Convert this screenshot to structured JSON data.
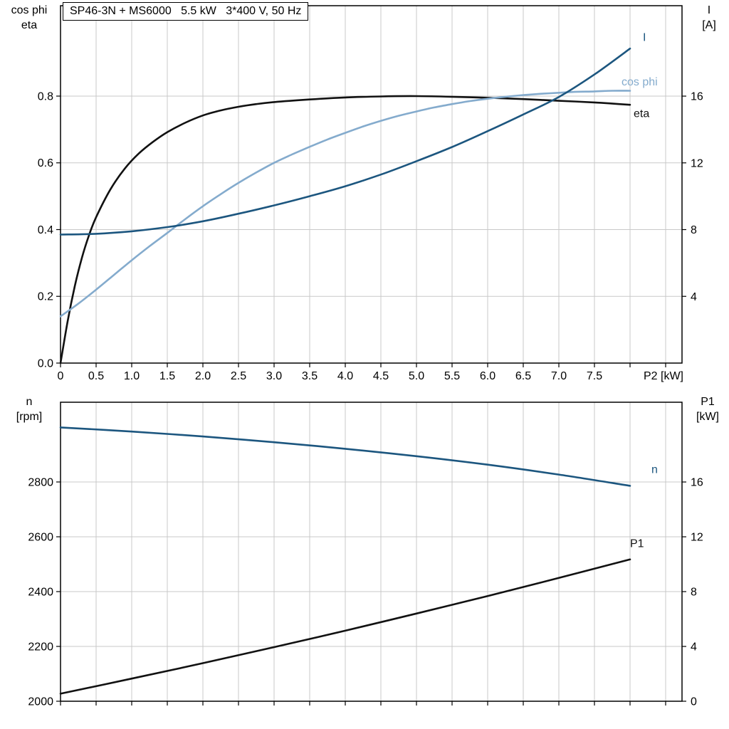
{
  "title": "SP46-3N + MS6000   5.5 kW   3*400 V, 50 Hz",
  "colors": {
    "curve_black": "#111111",
    "curve_dark_blue": "#1c567f",
    "curve_light_blue": "#84abcd",
    "grid": "#c9c9c9",
    "frame": "#000000",
    "text": "#000000"
  },
  "chart_data": [
    {
      "type": "line",
      "name": "motor-electrical-curves",
      "x_axis": {
        "min": 0,
        "max": 8.73,
        "grid_step": 0.5,
        "tick_labels": [
          "0",
          "0.5",
          "1.0",
          "1.5",
          "2.0",
          "2.5",
          "3.0",
          "3.5",
          "4.0",
          "4.5",
          "5.0",
          "5.5",
          "6.0",
          "6.5",
          "7.0",
          "7.5"
        ],
        "end_label": "P2 [kW]"
      },
      "left_axis": {
        "title": "cos phi\neta",
        "min": 0,
        "max": 1.0709,
        "ticks": [
          0,
          0.2,
          0.4,
          0.6,
          0.8
        ],
        "tick_labels": [
          "0.0",
          "0.2",
          "0.4",
          "0.6",
          "0.8"
        ]
      },
      "right_axis": {
        "title": "I\n[A]",
        "min": 0,
        "max": 21.42,
        "ticks": [
          4,
          8,
          12,
          16
        ],
        "tick_labels": [
          "4",
          "8",
          "12",
          "16"
        ]
      },
      "series": [
        {
          "name": "eta",
          "axis": "left",
          "color": "curve_black",
          "label": "eta",
          "label_at": [
            8.05,
            0.737
          ],
          "points": [
            [
              0,
              0
            ],
            [
              0.1,
              0.125
            ],
            [
              0.2,
              0.23
            ],
            [
              0.3,
              0.315
            ],
            [
              0.4,
              0.383
            ],
            [
              0.5,
              0.437
            ],
            [
              0.7,
              0.52
            ],
            [
              0.9,
              0.582
            ],
            [
              1.1,
              0.628
            ],
            [
              1.3,
              0.663
            ],
            [
              1.5,
              0.692
            ],
            [
              1.75,
              0.72
            ],
            [
              2,
              0.742
            ],
            [
              2.25,
              0.757
            ],
            [
              2.5,
              0.768
            ],
            [
              2.75,
              0.776
            ],
            [
              3,
              0.782
            ],
            [
              3.5,
              0.79
            ],
            [
              4,
              0.796
            ],
            [
              4.5,
              0.799
            ],
            [
              5,
              0.8
            ],
            [
              5.5,
              0.798
            ],
            [
              6,
              0.795
            ],
            [
              6.5,
              0.791
            ],
            [
              7,
              0.786
            ],
            [
              7.5,
              0.781
            ],
            [
              8,
              0.774
            ]
          ]
        },
        {
          "name": "cos phi",
          "axis": "left",
          "color": "curve_light_blue",
          "label": "cos phi",
          "label_at": [
            7.88,
            0.832
          ],
          "points": [
            [
              0,
              0.14
            ],
            [
              0.25,
              0.178
            ],
            [
              0.5,
              0.22
            ],
            [
              0.75,
              0.264
            ],
            [
              1,
              0.308
            ],
            [
              1.25,
              0.35
            ],
            [
              1.5,
              0.39
            ],
            [
              1.75,
              0.431
            ],
            [
              2,
              0.47
            ],
            [
              2.25,
              0.506
            ],
            [
              2.5,
              0.54
            ],
            [
              2.75,
              0.571
            ],
            [
              3,
              0.6
            ],
            [
              3.25,
              0.625
            ],
            [
              3.5,
              0.648
            ],
            [
              3.75,
              0.67
            ],
            [
              4,
              0.69
            ],
            [
              4.25,
              0.709
            ],
            [
              4.5,
              0.726
            ],
            [
              4.75,
              0.741
            ],
            [
              5,
              0.754
            ],
            [
              5.25,
              0.766
            ],
            [
              5.5,
              0.776
            ],
            [
              5.75,
              0.785
            ],
            [
              6,
              0.792
            ],
            [
              6.25,
              0.798
            ],
            [
              6.5,
              0.803
            ],
            [
              6.75,
              0.807
            ],
            [
              7,
              0.81
            ],
            [
              7.25,
              0.813
            ],
            [
              7.5,
              0.814
            ],
            [
              7.75,
              0.816
            ],
            [
              8,
              0.816
            ]
          ]
        },
        {
          "name": "I",
          "axis": "right",
          "color": "curve_dark_blue",
          "label": "I",
          "label_at": [
            8.18,
            19.3
          ],
          "points": [
            [
              0,
              7.7
            ],
            [
              0.5,
              7.75
            ],
            [
              1,
              7.9
            ],
            [
              1.5,
              8.15
            ],
            [
              2,
              8.5
            ],
            [
              2.5,
              8.95
            ],
            [
              3,
              9.45
            ],
            [
              3.5,
              10.0
            ],
            [
              4,
              10.6
            ],
            [
              4.5,
              11.3
            ],
            [
              5,
              12.1
            ],
            [
              5.5,
              12.95
            ],
            [
              6,
              13.9
            ],
            [
              6.5,
              14.9
            ],
            [
              7,
              15.95
            ],
            [
              7.5,
              17.3
            ],
            [
              8,
              18.85
            ]
          ]
        }
      ]
    },
    {
      "type": "line",
      "name": "speed-and-input-power-curves",
      "x_axis": {
        "min": 0,
        "max": 8.73,
        "grid_step": 0.5,
        "tick_labels": [],
        "end_label": ""
      },
      "left_axis": {
        "title": "n\n[rpm]",
        "min": 2000,
        "max": 3090.9,
        "ticks": [
          2000,
          2200,
          2400,
          2600,
          2800
        ],
        "tick_labels": [
          "2000",
          "2200",
          "2400",
          "2600",
          "2800"
        ]
      },
      "right_axis": {
        "title": "P1\n[kW]",
        "min": 0,
        "max": 21.82,
        "ticks": [
          0,
          4,
          8,
          12,
          16
        ],
        "tick_labels": [
          "0",
          "4",
          "8",
          "12",
          "16"
        ]
      },
      "series": [
        {
          "name": "n",
          "axis": "left",
          "color": "curve_dark_blue",
          "label": "n",
          "label_at": [
            8.3,
            2832
          ],
          "points": [
            [
              0,
              2999
            ],
            [
              1,
              2984
            ],
            [
              2,
              2966
            ],
            [
              3,
              2945
            ],
            [
              4,
              2921
            ],
            [
              5,
              2894
            ],
            [
              6,
              2863
            ],
            [
              7,
              2827
            ],
            [
              8,
              2786
            ]
          ]
        },
        {
          "name": "P1",
          "axis": "right",
          "color": "curve_black",
          "label": "P1",
          "label_at": [
            8.0,
            11.25
          ],
          "points": [
            [
              0,
              0.55
            ],
            [
              1,
              1.65
            ],
            [
              2,
              2.78
            ],
            [
              3,
              3.95
            ],
            [
              4,
              5.15
            ],
            [
              5,
              6.4
            ],
            [
              6,
              7.68
            ],
            [
              7,
              9.0
            ],
            [
              8,
              10.35
            ]
          ]
        }
      ]
    }
  ]
}
